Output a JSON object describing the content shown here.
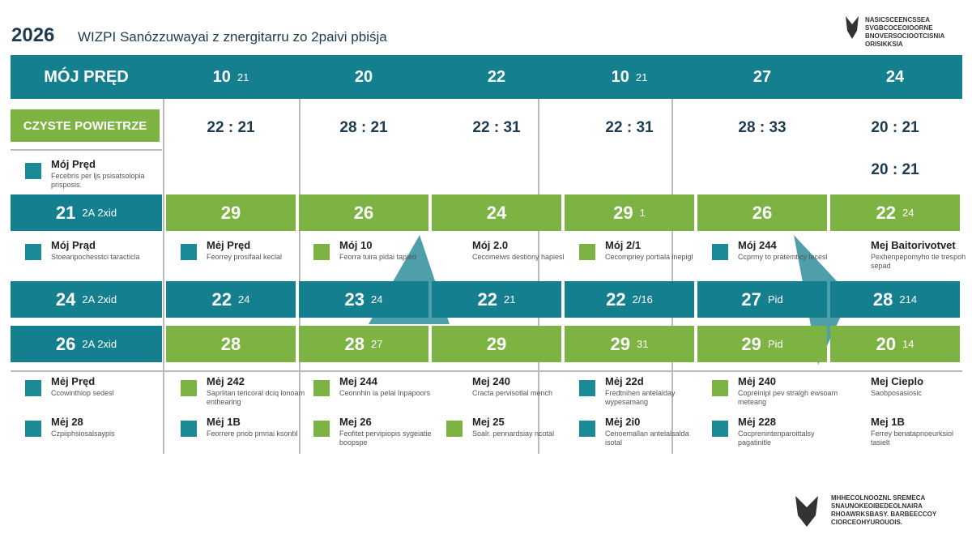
{
  "header": {
    "year": "2026",
    "title": "WIZPI Sanózzuwayai z znergitarru zo 2paivi pbiśja",
    "logo_text": [
      "NASICSCEENCSSEA",
      "SVGBCOCEOIOORNE",
      "BNOVERSOCIOOTCISNIA",
      "ORISIKKSIA"
    ]
  },
  "table": {
    "header_row": [
      {
        "main": "MÓJ PRĘD"
      },
      {
        "main": "10",
        "sub": "21"
      },
      {
        "main": "20"
      },
      {
        "main": "22"
      },
      {
        "main": "10",
        "sub": "21"
      },
      {
        "main": "27"
      },
      {
        "main": "24"
      }
    ],
    "badge": "CZYSTE POWIETRZE",
    "times": [
      "22 : 21",
      "28 : 21",
      "22 : 31",
      "22 : 31",
      "28 : 33",
      "20 : 21"
    ],
    "time_extra": "20 : 21",
    "intro_item": {
      "label": "Mój Pręd",
      "desc": "Fecebris per ljs psisatsolopia prisposis.",
      "icon": "#1a8a96"
    },
    "bands": [
      {
        "left_color": "#147f8e",
        "color": "#7cb342",
        "cells": [
          {
            "main": "21",
            "sub": "2A 2xid"
          },
          {
            "main": "29"
          },
          {
            "main": "26"
          },
          {
            "main": "24"
          },
          {
            "main": "29",
            "sub": "1"
          },
          {
            "main": "26"
          },
          {
            "main": "22",
            "sub": "24"
          }
        ]
      },
      {
        "left_color": "#147f8e",
        "color": "#147f8e",
        "cells": [
          {
            "main": "24",
            "sub": "2A 2xid"
          },
          {
            "main": "22",
            "sub": "24"
          },
          {
            "main": "23",
            "sub": "24"
          },
          {
            "main": "22",
            "sub": "21"
          },
          {
            "main": "22",
            "sub": "2/16"
          },
          {
            "main": "27",
            "sub": "Pid"
          },
          {
            "main": "28",
            "sub": "214"
          }
        ]
      },
      {
        "left_color": "#147f8e",
        "color": "#7cb342",
        "cells": [
          {
            "main": "26",
            "sub": "2A 2xid"
          },
          {
            "main": "28"
          },
          {
            "main": "28",
            "sub": "27"
          },
          {
            "main": "29"
          },
          {
            "main": "29",
            "sub": "31"
          },
          {
            "main": "29",
            "sub": "Pid"
          },
          {
            "main": "20",
            "sub": "14"
          }
        ]
      }
    ],
    "item_rows": [
      [
        {
          "label": "Mój Prąd",
          "desc": "Stoeanpochesstci taracticla",
          "icon": "#1a8a96"
        },
        {
          "label": "Mėj Pręd",
          "desc": "Feorrey proslfaal keclal",
          "icon": "#1a8a96"
        },
        {
          "label": "Mój 10",
          "desc": "Feorra tuira pidai tapied",
          "icon": "#7cb342"
        },
        {
          "label": "Mój 2.0",
          "desc": "Cecomeiws destiony hapiesl"
        },
        {
          "label": "Mój 2/1",
          "desc": "Cecompriey portiala inepigl",
          "icon": "#7cb342"
        },
        {
          "label": "Mój 244",
          "desc": "Ccprmy to pratemticy lecesl",
          "icon": "#1a8a96"
        },
        {
          "label": "Mej Baitorivotvet",
          "desc": "Pexhenpepomyho tle trespoh sepad"
        }
      ],
      [
        {
          "label": "Mėj Pręd",
          "desc": "Ccowinthiop sedesl",
          "icon": "#1a8a96"
        },
        {
          "label": "Mėj 242",
          "desc": "Saprlitan tericoral dciq lonoam enthearing",
          "icon": "#7cb342"
        },
        {
          "label": "Mej 244",
          "desc": "Ceonnhin la pelai Inpapoors",
          "icon": "#7cb342"
        },
        {
          "label": "Mej 240",
          "desc": "Cracta pervisotlal mench"
        },
        {
          "label": "Mėj 22d",
          "desc": "Fredtnihen antelalday wypesamang",
          "icon": "#1a8a96"
        },
        {
          "label": "Mėj 240",
          "desc": "Copreinipi pev stralgh ewsoam meteang",
          "icon": "#7cb342"
        },
        {
          "label": "Mej Cieplo",
          "desc": "Saobposasiosic"
        }
      ],
      [
        {
          "label": "Mėj 28",
          "desc": "Czpiiphsiosalsaypis",
          "icon": "#1a8a96"
        },
        {
          "label": "Mėj 1B",
          "desc": "Feorrere pnob pmriai ksonbl",
          "icon": "#1a8a96"
        },
        {
          "label": "Mej 26",
          "desc": "Feofitet pervipiopis sygeiatie boopspe",
          "icon": "#7cb342"
        },
        {
          "label": "Mej 25",
          "desc": "Soalr. pennardsiay ncotal",
          "icon": "#7cb342"
        },
        {
          "label": "Mėj 2i0",
          "desc": "Cenoemallan antelalsalda isotal",
          "icon": "#1a8a96"
        },
        {
          "label": "Mėj 228",
          "desc": "Cocprenintenparoittalsy pagatinitle",
          "icon": "#1a8a96"
        },
        {
          "label": "Mej 1B",
          "desc": "Ferrey benatapnoeurksiol tasielt"
        }
      ]
    ]
  },
  "footer": {
    "logo_text": [
      "MHHECOLNOOZNL SREMECA",
      "SNAUNOKEOIBEDEOLNAIRA",
      "RHOAWRKSBASY. BARBEECCOY",
      "CIORCEOHYUROUOIS."
    ]
  }
}
